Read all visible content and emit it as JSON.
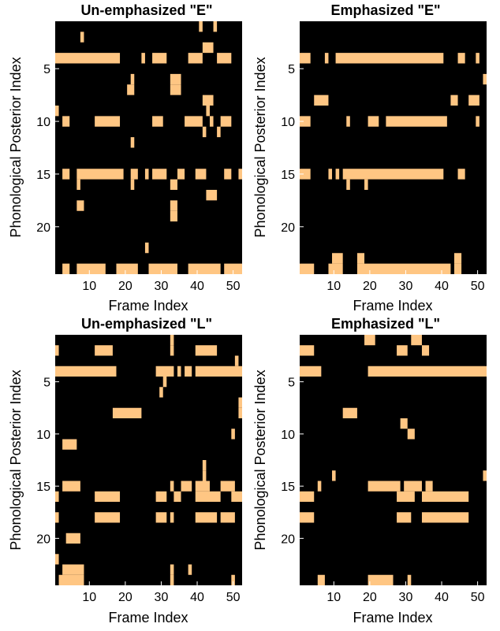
{
  "figure": {
    "xlabel": "Frame Index",
    "ylabel": "Phonological Posterior Index",
    "colors": {
      "background": "#000000",
      "active": "#FFC683"
    }
  },
  "chart_data": [
    {
      "type": "heatmap",
      "title": "Un-emphasized \"E\"",
      "xlabel": "Frame Index",
      "ylabel": "Phonological Posterior Index",
      "xlim": [
        0.5,
        52.5
      ],
      "ylim": [
        0.5,
        24.5
      ],
      "xticks": [
        10,
        20,
        30,
        40,
        50
      ],
      "yticks": [
        5,
        10,
        15,
        20
      ],
      "color_active": "#FFC683",
      "color_inactive": "#000000",
      "active": [
        {
          "row": 1,
          "x": [
            [
              41,
              41
            ],
            [
              45,
              45
            ]
          ]
        },
        {
          "row": 2,
          "x": [
            [
              8,
              8
            ]
          ]
        },
        {
          "row": 3,
          "x": [
            [
              42,
              44
            ]
          ]
        },
        {
          "row": 4,
          "x": [
            [
              1,
              18
            ],
            [
              25,
              25
            ],
            [
              28,
              31
            ],
            [
              38,
              41
            ],
            [
              46,
              49
            ]
          ]
        },
        {
          "row": 6,
          "x": [
            [
              22,
              22
            ],
            [
              33,
              35
            ]
          ]
        },
        {
          "row": 7,
          "x": [
            [
              21,
              22
            ],
            [
              33,
              35
            ]
          ]
        },
        {
          "row": 8,
          "x": [
            [
              42,
              44
            ]
          ]
        },
        {
          "row": 9,
          "x": [
            [
              1,
              1
            ],
            [
              43,
              43
            ]
          ]
        },
        {
          "row": 10,
          "x": [
            [
              3,
              4
            ],
            [
              12,
              18
            ],
            [
              28,
              30
            ],
            [
              37,
              41
            ],
            [
              44,
              44
            ],
            [
              47,
              49
            ]
          ]
        },
        {
          "row": 11,
          "x": [
            [
              42,
              42
            ],
            [
              46,
              46
            ]
          ]
        },
        {
          "row": 12,
          "x": [
            [
              22,
              22
            ]
          ]
        },
        {
          "row": 15,
          "x": [
            [
              3,
              4
            ],
            [
              7,
              19
            ],
            [
              22,
              23
            ],
            [
              26,
              26
            ],
            [
              28,
              31
            ],
            [
              35,
              36
            ],
            [
              40,
              42
            ],
            [
              48,
              49
            ],
            [
              52,
              52
            ]
          ]
        },
        {
          "row": 16,
          "x": [
            [
              7,
              7
            ],
            [
              22,
              22
            ],
            [
              33,
              34
            ]
          ]
        },
        {
          "row": 17,
          "x": [
            [
              43,
              45
            ]
          ]
        },
        {
          "row": 18,
          "x": [
            [
              7,
              8
            ],
            [
              33,
              34
            ]
          ]
        },
        {
          "row": 19,
          "x": [
            [
              33,
              34
            ]
          ]
        },
        {
          "row": 22,
          "x": [
            [
              26,
              26
            ]
          ]
        },
        {
          "row": 24,
          "x": [
            [
              3,
              4
            ],
            [
              7,
              14
            ],
            [
              18,
              23
            ],
            [
              27,
              34
            ],
            [
              38,
              46
            ],
            [
              48,
              52
            ]
          ]
        }
      ]
    },
    {
      "type": "heatmap",
      "title": "Emphasized \"E\"",
      "xlabel": "Frame Index",
      "ylabel": "",
      "xlim": [
        0.5,
        52.5
      ],
      "ylim": [
        0.5,
        24.5
      ],
      "xticks": [
        10,
        20,
        30,
        40,
        50
      ],
      "yticks": [
        5,
        10,
        15,
        20
      ],
      "color_active": "#FFC683",
      "color_inactive": "#000000",
      "active": [
        {
          "row": 4,
          "x": [
            [
              1,
              3
            ],
            [
              8,
              8
            ],
            [
              11,
              40
            ],
            [
              45,
              46
            ],
            [
              50,
              50
            ]
          ]
        },
        {
          "row": 6,
          "x": [
            [
              52,
              52
            ]
          ]
        },
        {
          "row": 8,
          "x": [
            [
              5,
              8
            ],
            [
              43,
              44
            ],
            [
              48,
              50
            ]
          ]
        },
        {
          "row": 10,
          "x": [
            [
              1,
              3
            ],
            [
              14,
              14
            ],
            [
              20,
              22
            ],
            [
              25,
              41
            ],
            [
              50,
              50
            ]
          ]
        },
        {
          "row": 15,
          "x": [
            [
              1,
              3
            ],
            [
              9,
              9
            ],
            [
              11,
              11
            ],
            [
              13,
              40
            ],
            [
              45,
              46
            ]
          ]
        },
        {
          "row": 16,
          "x": [
            [
              14,
              14
            ],
            [
              19,
              19
            ]
          ]
        },
        {
          "row": 23,
          "x": [
            [
              10,
              12
            ],
            [
              17,
              18
            ],
            [
              44,
              45
            ]
          ]
        },
        {
          "row": 24,
          "x": [
            [
              1,
              4
            ],
            [
              9,
              12
            ],
            [
              17,
              42
            ],
            [
              44,
              45
            ]
          ]
        }
      ]
    },
    {
      "type": "heatmap",
      "title": "Un-emphasized \"L\"",
      "xlabel": "Frame Index",
      "ylabel": "Phonological Posterior Index",
      "xlim": [
        0.5,
        52.5
      ],
      "ylim": [
        0.5,
        24.5
      ],
      "xticks": [
        10,
        20,
        30,
        40,
        50
      ],
      "yticks": [
        5,
        10,
        15,
        20
      ],
      "color_active": "#FFC683",
      "color_inactive": "#000000",
      "active": [
        {
          "row": 1,
          "x": [
            [
              33,
              33
            ]
          ]
        },
        {
          "row": 2,
          "x": [
            [
              1,
              1
            ],
            [
              12,
              16
            ],
            [
              33,
              33
            ],
            [
              40,
              45
            ]
          ]
        },
        {
          "row": 3,
          "x": [
            [
              51,
              51
            ]
          ]
        },
        {
          "row": 4,
          "x": [
            [
              1,
              17
            ],
            [
              29,
              33
            ],
            [
              35,
              35
            ],
            [
              37,
              38
            ],
            [
              40,
              52
            ]
          ]
        },
        {
          "row": 5,
          "x": [
            [
              31,
              31
            ]
          ]
        },
        {
          "row": 6,
          "x": [
            [
              30,
              30
            ]
          ]
        },
        {
          "row": 7,
          "x": [
            [
              52,
              52
            ]
          ]
        },
        {
          "row": 8,
          "x": [
            [
              17,
              24
            ],
            [
              52,
              52
            ]
          ]
        },
        {
          "row": 10,
          "x": [
            [
              50,
              50
            ]
          ]
        },
        {
          "row": 11,
          "x": [
            [
              3,
              6
            ]
          ]
        },
        {
          "row": 13,
          "x": [
            [
              42,
              42
            ]
          ]
        },
        {
          "row": 14,
          "x": [
            [
              42,
              42
            ]
          ]
        },
        {
          "row": 15,
          "x": [
            [
              3,
              7
            ],
            [
              33,
              33
            ],
            [
              36,
              38
            ],
            [
              40,
              43
            ],
            [
              47,
              50
            ]
          ]
        },
        {
          "row": 16,
          "x": [
            [
              1,
              1
            ],
            [
              12,
              18
            ],
            [
              29,
              31
            ],
            [
              34,
              35
            ],
            [
              40,
              46
            ],
            [
              50,
              52
            ]
          ]
        },
        {
          "row": 18,
          "x": [
            [
              1,
              1
            ],
            [
              12,
              18
            ],
            [
              29,
              31
            ],
            [
              33,
              33
            ],
            [
              40,
              45
            ],
            [
              47,
              50
            ]
          ]
        },
        {
          "row": 20,
          "x": [
            [
              4,
              7
            ]
          ]
        },
        {
          "row": 22,
          "x": [
            [
              1,
              1
            ]
          ]
        },
        {
          "row": 23,
          "x": [
            [
              3,
              8
            ],
            [
              33,
              33
            ],
            [
              38,
              38
            ]
          ]
        },
        {
          "row": 24,
          "x": [
            [
              2,
              8
            ],
            [
              33,
              33
            ],
            [
              50,
              50
            ]
          ]
        }
      ]
    },
    {
      "type": "heatmap",
      "title": "Emphasized \"L\"",
      "xlabel": "Frame Index",
      "ylabel": "",
      "xlim": [
        0.5,
        52.5
      ],
      "ylim": [
        0.5,
        24.5
      ],
      "xticks": [
        10,
        20,
        30,
        40,
        50
      ],
      "yticks": [
        5,
        10,
        15,
        20
      ],
      "color_active": "#FFC683",
      "color_inactive": "#000000",
      "active": [
        {
          "row": 1,
          "x": [
            [
              19,
              21
            ],
            [
              32,
              34
            ]
          ]
        },
        {
          "row": 2,
          "x": [
            [
              1,
              4
            ],
            [
              28,
              30
            ],
            [
              35,
              36
            ]
          ]
        },
        {
          "row": 4,
          "x": [
            [
              1,
              6
            ],
            [
              20,
              52
            ]
          ]
        },
        {
          "row": 8,
          "x": [
            [
              13,
              16
            ]
          ]
        },
        {
          "row": 9,
          "x": [
            [
              29,
              30
            ]
          ]
        },
        {
          "row": 10,
          "x": [
            [
              31,
              32
            ]
          ]
        },
        {
          "row": 14,
          "x": [
            [
              10,
              10
            ],
            [
              52,
              52
            ]
          ]
        },
        {
          "row": 15,
          "x": [
            [
              6,
              6
            ],
            [
              20,
              28
            ],
            [
              30,
              34
            ],
            [
              36,
              37
            ]
          ]
        },
        {
          "row": 16,
          "x": [
            [
              1,
              4
            ],
            [
              28,
              32
            ],
            [
              35,
              47
            ]
          ]
        },
        {
          "row": 18,
          "x": [
            [
              1,
              4
            ],
            [
              28,
              31
            ],
            [
              35,
              47
            ]
          ]
        },
        {
          "row": 24,
          "x": [
            [
              6,
              7
            ],
            [
              20,
              26
            ],
            [
              31,
              31
            ]
          ]
        }
      ]
    }
  ]
}
